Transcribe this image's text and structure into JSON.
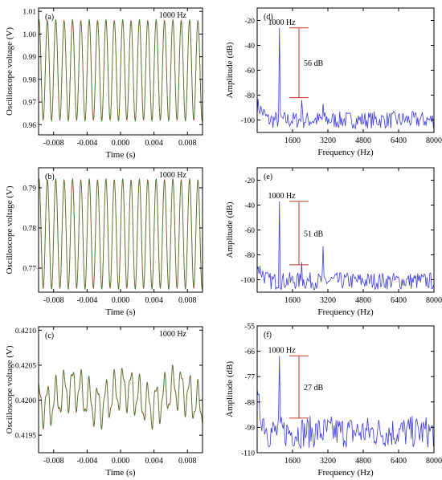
{
  "chart_data": [
    {
      "id": "a",
      "type": "line",
      "panel_label": "(a)",
      "annotation": "1000 Hz",
      "xlabel": "Time (s)",
      "ylabel": "Oscilloscope voltage (V)",
      "xlim": [
        -0.0098,
        0.0098
      ],
      "ylim": [
        0.9555,
        1.0115
      ],
      "xticks": [
        -0.008,
        -0.004,
        0.0,
        0.004,
        0.008
      ],
      "xtick_labels": [
        "-0.008",
        "-0.004",
        "0.000",
        "0.004",
        "0.008"
      ],
      "yticks": [
        0.96,
        0.97,
        0.98,
        0.99,
        1.0,
        1.01
      ],
      "ytick_labels": [
        "0.96",
        "0.97",
        "0.98",
        "0.99",
        "1.00",
        "1.01"
      ],
      "signal": {
        "frequency_hz": 1000,
        "offset": 0.984,
        "amplitude": 0.022
      },
      "series": [
        {
          "color": "#e03030"
        },
        {
          "color": "#2e8b2e"
        }
      ]
    },
    {
      "id": "b",
      "type": "line",
      "panel_label": "(b)",
      "annotation": "1000 Hz",
      "xlabel": "Time (s)",
      "ylabel": "Oscilloscope voltage (V)",
      "xlim": [
        -0.0098,
        0.0098
      ],
      "ylim": [
        0.764,
        0.795
      ],
      "xticks": [
        -0.008,
        -0.004,
        0.0,
        0.004,
        0.008
      ],
      "xtick_labels": [
        "-0.008",
        "-0.004",
        "0.000",
        "0.004",
        "0.008"
      ],
      "yticks": [
        0.77,
        0.78,
        0.79
      ],
      "ytick_labels": [
        "0.77",
        "0.78",
        "0.79"
      ],
      "signal": {
        "frequency_hz": 1000,
        "offset": 0.7785,
        "amplitude": 0.0135
      },
      "series": [
        {
          "color": "#e03030"
        },
        {
          "color": "#2e8b2e"
        }
      ]
    },
    {
      "id": "c",
      "type": "line",
      "panel_label": "(c)",
      "annotation": "1000 Hz",
      "xlabel": "Time (s)",
      "ylabel": "Oscilloscope voltage (V)",
      "xlim": [
        -0.0098,
        0.0098
      ],
      "ylim": [
        0.41925,
        0.42105
      ],
      "xticks": [
        -0.008,
        -0.004,
        0.0,
        0.004,
        0.008
      ],
      "xtick_labels": [
        "-0.008",
        "-0.004",
        "0.000",
        "0.004",
        "0.008"
      ],
      "yticks": [
        0.4195,
        0.42,
        0.4205,
        0.421
      ],
      "ytick_labels": [
        "0.4195",
        "0.4200",
        "0.4205",
        "0.4210"
      ],
      "signal": {
        "frequency_hz": 1000,
        "offset": 0.42005,
        "amplitude": 0.00035,
        "noisy": true
      },
      "series": [
        {
          "color": "#e03030"
        },
        {
          "color": "#2e8b2e"
        }
      ]
    },
    {
      "id": "d",
      "type": "line",
      "panel_label": "(d)",
      "xlabel": "Frequency (Hz)",
      "ylabel": "Amplitude (dB)",
      "xlim": [
        0,
        8000
      ],
      "ylim": [
        -110,
        -10
      ],
      "xticks": [
        1600,
        3200,
        4800,
        6400,
        8000
      ],
      "xtick_labels": [
        "1600",
        "3200",
        "4800",
        "6400",
        "8000"
      ],
      "yticks": [
        -20,
        -40,
        -60,
        -80,
        -100
      ],
      "ytick_labels": [
        "-20",
        "-40",
        "-60",
        "-80",
        "-100"
      ],
      "peak": {
        "label": "1000 Hz",
        "x": 1000,
        "y": -26
      },
      "bracket": {
        "label": "56 dB",
        "top": -26,
        "bottom": -82,
        "x": 1600
      },
      "floor": -100,
      "harmonics": [
        {
          "x": 2000,
          "y": -84
        },
        {
          "x": 3000,
          "y": -87
        }
      ],
      "series": [
        {
          "color": "#3b3bdc"
        }
      ]
    },
    {
      "id": "e",
      "type": "line",
      "panel_label": "(e)",
      "xlabel": "Frequency (Hz)",
      "ylabel": "Amplitude (dB)",
      "xlim": [
        0,
        8000
      ],
      "ylim": [
        -110,
        -10
      ],
      "xticks": [
        1600,
        3200,
        4800,
        6400,
        8000
      ],
      "xtick_labels": [
        "1600",
        "3200",
        "4800",
        "6400",
        "8000"
      ],
      "yticks": [
        -20,
        -40,
        -60,
        -80,
        -100
      ],
      "ytick_labels": [
        "-20",
        "-40",
        "-60",
        "-80",
        "-100"
      ],
      "peak": {
        "label": "1000 Hz",
        "x": 1000,
        "y": -37
      },
      "bracket": {
        "label": "51 dB",
        "top": -37,
        "bottom": -88,
        "x": 1600
      },
      "floor": -101,
      "harmonics": [
        {
          "x": 2000,
          "y": -86
        },
        {
          "x": 3000,
          "y": -73
        }
      ],
      "series": [
        {
          "color": "#3b3bdc"
        }
      ]
    },
    {
      "id": "f",
      "type": "line",
      "panel_label": "(f)",
      "xlabel": "Frequency (Hz)",
      "ylabel": "Amplitude (dB)",
      "xlim": [
        0,
        8000
      ],
      "ylim": [
        -110,
        -55
      ],
      "xticks": [
        1600,
        3200,
        4800,
        6400,
        8000
      ],
      "xtick_labels": [
        "1600",
        "3200",
        "4800",
        "6400",
        "8000"
      ],
      "yticks": [
        -55,
        -66,
        -77,
        -88,
        -99,
        -110
      ],
      "ytick_labels": [
        "-55",
        "-66",
        "-77",
        "-88",
        "-99",
        "-110"
      ],
      "peak": {
        "label": "1000 Hz",
        "x": 1000,
        "y": -68
      },
      "bracket": {
        "label": "27 dB",
        "top": -68,
        "bottom": -95,
        "x": 1600
      },
      "floor": -101,
      "harmonics": [
        {
          "x": 2000,
          "y": -96
        }
      ],
      "series": [
        {
          "color": "#3b3bdc"
        }
      ]
    }
  ]
}
